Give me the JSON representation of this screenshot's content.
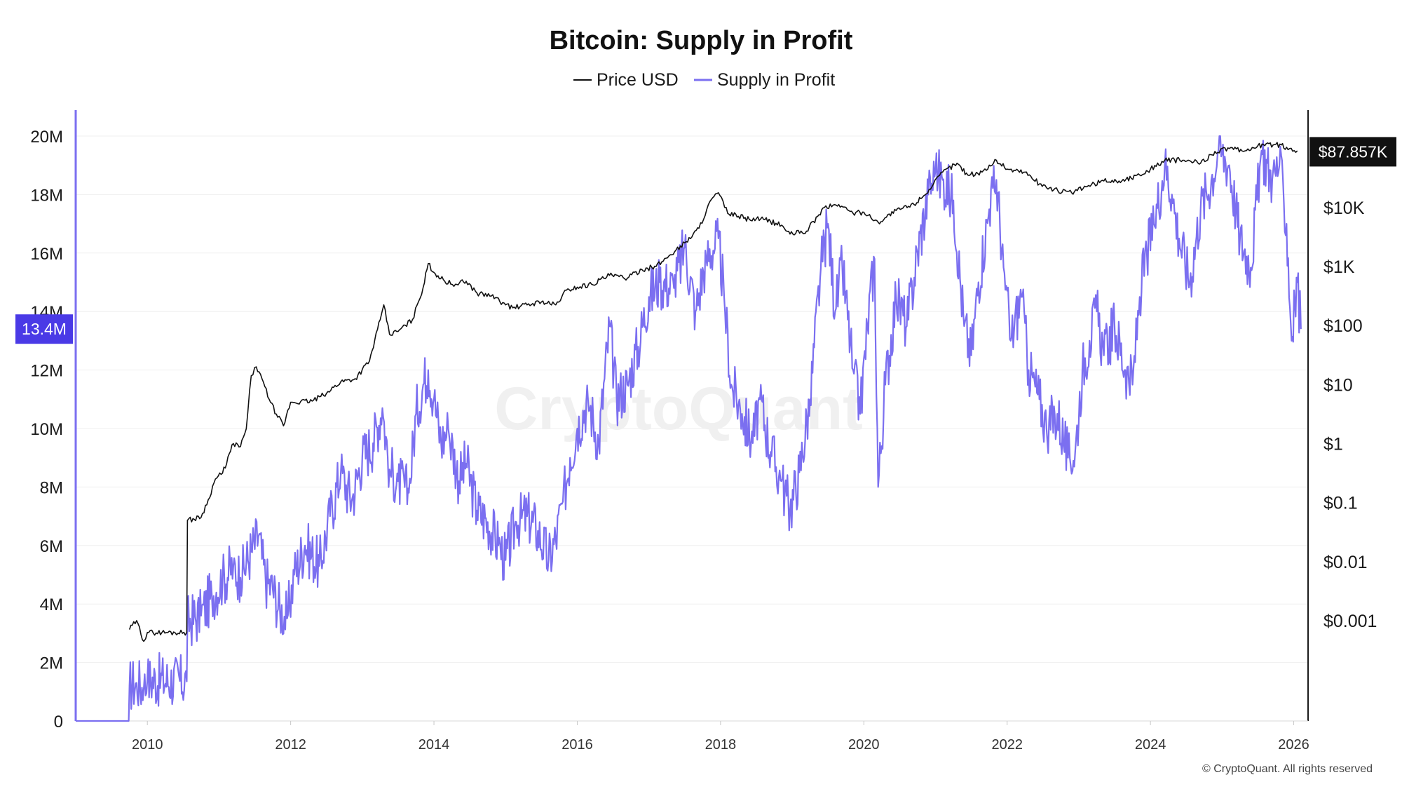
{
  "chart_data": {
    "type": "line",
    "title": "Bitcoin: Supply in Profit",
    "legend": [
      {
        "name": "Price USD",
        "color": "#111111"
      },
      {
        "name": "Supply in Profit",
        "color": "#7b6ff0"
      }
    ],
    "legend_position": "top-center",
    "left_axis": {
      "ylim": [
        0,
        21000000
      ],
      "ticks": [
        0,
        2000000,
        4000000,
        6000000,
        8000000,
        10000000,
        12000000,
        14000000,
        16000000,
        18000000,
        20000000
      ],
      "tick_labels": [
        "0",
        "2M",
        "4M",
        "6M",
        "8M",
        "10M",
        "12M",
        "14M",
        "16M",
        "18M",
        "20M"
      ],
      "color": "#7b6ff0"
    },
    "right_axis": {
      "scale": "log",
      "ylim_log10": [
        -4.7,
        5.65
      ],
      "ticks_log10": [
        -3,
        -2,
        -1,
        0,
        1,
        2,
        3,
        4
      ],
      "tick_labels": [
        "$0.001",
        "$0.01",
        "$0.1",
        "$1",
        "$10",
        "$100",
        "$1K",
        "$10K"
      ],
      "color": "#111111"
    },
    "x_axis": {
      "xlim": [
        2009.0,
        2026.2
      ],
      "ticks": [
        2010,
        2012,
        2014,
        2016,
        2018,
        2020,
        2022,
        2024,
        2026
      ],
      "tick_labels": [
        "2010",
        "2012",
        "2014",
        "2016",
        "2018",
        "2020",
        "2022",
        "2024",
        "2026"
      ]
    },
    "grid": "horizontal",
    "current_supply_label": "13.4M",
    "current_supply_value": 13400000,
    "current_price_label": "$87.857K",
    "current_price_value": 87857,
    "series": [
      {
        "name": "Price USD",
        "axis": "right",
        "unit": "log10 USD",
        "points": [
          [
            2009.75,
            -3.15
          ],
          [
            2009.85,
            -3.0
          ],
          [
            2009.95,
            -3.35
          ],
          [
            2010.0,
            -3.2
          ],
          [
            2010.55,
            -3.2
          ],
          [
            2010.56,
            -1.3
          ],
          [
            2010.75,
            -1.25
          ],
          [
            2010.85,
            -0.95
          ],
          [
            2010.95,
            -0.6
          ],
          [
            2011.05,
            -0.5
          ],
          [
            2011.2,
            0.0
          ],
          [
            2011.3,
            -0.05
          ],
          [
            2011.38,
            0.25
          ],
          [
            2011.45,
            1.15
          ],
          [
            2011.52,
            1.3
          ],
          [
            2011.6,
            1.1
          ],
          [
            2011.7,
            0.75
          ],
          [
            2011.8,
            0.5
          ],
          [
            2011.9,
            0.3
          ],
          [
            2012.0,
            0.7
          ],
          [
            2012.3,
            0.72
          ],
          [
            2012.5,
            0.85
          ],
          [
            2012.7,
            1.05
          ],
          [
            2012.9,
            1.1
          ],
          [
            2013.1,
            1.4
          ],
          [
            2013.25,
            2.1
          ],
          [
            2013.3,
            2.35
          ],
          [
            2013.38,
            1.85
          ],
          [
            2013.5,
            1.9
          ],
          [
            2013.7,
            2.1
          ],
          [
            2013.85,
            2.65
          ],
          [
            2013.92,
            3.05
          ],
          [
            2014.0,
            2.9
          ],
          [
            2014.15,
            2.75
          ],
          [
            2014.3,
            2.7
          ],
          [
            2014.45,
            2.75
          ],
          [
            2014.6,
            2.55
          ],
          [
            2014.8,
            2.5
          ],
          [
            2015.0,
            2.35
          ],
          [
            2015.1,
            2.3
          ],
          [
            2015.3,
            2.35
          ],
          [
            2015.5,
            2.4
          ],
          [
            2015.7,
            2.35
          ],
          [
            2015.85,
            2.6
          ],
          [
            2016.0,
            2.65
          ],
          [
            2016.2,
            2.7
          ],
          [
            2016.45,
            2.85
          ],
          [
            2016.7,
            2.8
          ],
          [
            2016.9,
            2.95
          ],
          [
            2017.1,
            3.0
          ],
          [
            2017.3,
            3.2
          ],
          [
            2017.5,
            3.4
          ],
          [
            2017.7,
            3.65
          ],
          [
            2017.85,
            4.1
          ],
          [
            2017.97,
            4.25
          ],
          [
            2018.1,
            3.9
          ],
          [
            2018.25,
            3.85
          ],
          [
            2018.4,
            3.8
          ],
          [
            2018.6,
            3.8
          ],
          [
            2018.85,
            3.7
          ],
          [
            2018.97,
            3.55
          ],
          [
            2019.2,
            3.6
          ],
          [
            2019.45,
            4.0
          ],
          [
            2019.65,
            4.05
          ],
          [
            2019.85,
            3.9
          ],
          [
            2020.0,
            3.92
          ],
          [
            2020.2,
            3.75
          ],
          [
            2020.45,
            3.95
          ],
          [
            2020.7,
            4.05
          ],
          [
            2020.95,
            4.35
          ],
          [
            2021.1,
            4.6
          ],
          [
            2021.3,
            4.75
          ],
          [
            2021.45,
            4.55
          ],
          [
            2021.65,
            4.6
          ],
          [
            2021.85,
            4.8
          ],
          [
            2022.0,
            4.65
          ],
          [
            2022.25,
            4.6
          ],
          [
            2022.45,
            4.4
          ],
          [
            2022.65,
            4.3
          ],
          [
            2022.9,
            4.25
          ],
          [
            2023.1,
            4.35
          ],
          [
            2023.35,
            4.45
          ],
          [
            2023.6,
            4.45
          ],
          [
            2023.85,
            4.55
          ],
          [
            2024.0,
            4.65
          ],
          [
            2024.2,
            4.8
          ],
          [
            2024.45,
            4.8
          ],
          [
            2024.7,
            4.75
          ],
          [
            2024.9,
            4.95
          ],
          [
            2025.1,
            5.0
          ],
          [
            2025.3,
            4.95
          ],
          [
            2025.5,
            5.05
          ],
          [
            2025.75,
            5.07
          ],
          [
            2025.9,
            5.02
          ],
          [
            2026.05,
            4.96
          ]
        ]
      },
      {
        "name": "Supply in Profit",
        "axis": "left",
        "unit": "BTC",
        "points": [
          [
            2009.0,
            0
          ],
          [
            2009.74,
            0
          ],
          [
            2009.75,
            1200000
          ],
          [
            2009.85,
            1300000
          ],
          [
            2009.95,
            1100000
          ],
          [
            2010.0,
            1400000
          ],
          [
            2010.55,
            1350000
          ],
          [
            2010.56,
            3400000
          ],
          [
            2010.75,
            3600000
          ],
          [
            2010.9,
            4300000
          ],
          [
            2011.05,
            4800000
          ],
          [
            2011.2,
            5300000
          ],
          [
            2011.3,
            4900000
          ],
          [
            2011.45,
            5800000
          ],
          [
            2011.55,
            6300000
          ],
          [
            2011.65,
            4800000
          ],
          [
            2011.75,
            4500000
          ],
          [
            2011.85,
            3800000
          ],
          [
            2011.95,
            3500000
          ],
          [
            2012.05,
            5000000
          ],
          [
            2012.2,
            6000000
          ],
          [
            2012.4,
            5300000
          ],
          [
            2012.55,
            7000000
          ],
          [
            2012.7,
            8500000
          ],
          [
            2012.85,
            7500000
          ],
          [
            2013.0,
            9000000
          ],
          [
            2013.15,
            9500000
          ],
          [
            2013.28,
            10700000
          ],
          [
            2013.38,
            8600000
          ],
          [
            2013.5,
            8200000
          ],
          [
            2013.65,
            7800000
          ],
          [
            2013.75,
            10500000
          ],
          [
            2013.85,
            11500000
          ],
          [
            2013.92,
            12000000
          ],
          [
            2014.0,
            11000000
          ],
          [
            2014.1,
            9500000
          ],
          [
            2014.2,
            10000000
          ],
          [
            2014.35,
            8200000
          ],
          [
            2014.45,
            8800000
          ],
          [
            2014.6,
            7200000
          ],
          [
            2014.75,
            6800000
          ],
          [
            2014.9,
            6000000
          ],
          [
            2015.0,
            5500000
          ],
          [
            2015.15,
            6800000
          ],
          [
            2015.3,
            7000000
          ],
          [
            2015.45,
            6500000
          ],
          [
            2015.6,
            5500000
          ],
          [
            2015.7,
            6200000
          ],
          [
            2015.8,
            7500000
          ],
          [
            2015.9,
            9000000
          ],
          [
            2016.0,
            10000000
          ],
          [
            2016.15,
            11000000
          ],
          [
            2016.3,
            9500000
          ],
          [
            2016.45,
            13500000
          ],
          [
            2016.55,
            11000000
          ],
          [
            2016.7,
            11500000
          ],
          [
            2016.85,
            12800000
          ],
          [
            2017.0,
            14500000
          ],
          [
            2017.15,
            15000000
          ],
          [
            2017.35,
            14800000
          ],
          [
            2017.5,
            16200000
          ],
          [
            2017.65,
            14000000
          ],
          [
            2017.8,
            15800000
          ],
          [
            2017.97,
            16500000
          ],
          [
            2018.05,
            14500000
          ],
          [
            2018.15,
            11500000
          ],
          [
            2018.3,
            10500000
          ],
          [
            2018.45,
            9500000
          ],
          [
            2018.55,
            11000000
          ],
          [
            2018.7,
            9200000
          ],
          [
            2018.85,
            8200000
          ],
          [
            2018.97,
            7200000
          ],
          [
            2019.1,
            8500000
          ],
          [
            2019.25,
            11000000
          ],
          [
            2019.4,
            15500000
          ],
          [
            2019.5,
            17000000
          ],
          [
            2019.6,
            14000000
          ],
          [
            2019.7,
            15500000
          ],
          [
            2019.85,
            12000000
          ],
          [
            2019.95,
            10500000
          ],
          [
            2020.05,
            13500000
          ],
          [
            2020.15,
            15800000
          ],
          [
            2020.2,
            8000000
          ],
          [
            2020.3,
            11500000
          ],
          [
            2020.45,
            14500000
          ],
          [
            2020.6,
            13500000
          ],
          [
            2020.75,
            16000000
          ],
          [
            2020.9,
            18000000
          ],
          [
            2021.0,
            18800000
          ],
          [
            2021.1,
            18500000
          ],
          [
            2021.25,
            17800000
          ],
          [
            2021.4,
            13500000
          ],
          [
            2021.5,
            12500000
          ],
          [
            2021.6,
            15000000
          ],
          [
            2021.75,
            17500000
          ],
          [
            2021.85,
            18500000
          ],
          [
            2021.95,
            15500000
          ],
          [
            2022.05,
            13000000
          ],
          [
            2022.2,
            14500000
          ],
          [
            2022.3,
            12000000
          ],
          [
            2022.45,
            11000000
          ],
          [
            2022.55,
            10000000
          ],
          [
            2022.7,
            10500000
          ],
          [
            2022.85,
            9000000
          ],
          [
            2022.95,
            9200000
          ],
          [
            2023.05,
            12000000
          ],
          [
            2023.15,
            13000000
          ],
          [
            2023.25,
            14000000
          ],
          [
            2023.35,
            12500000
          ],
          [
            2023.5,
            13500000
          ],
          [
            2023.65,
            12000000
          ],
          [
            2023.75,
            11500000
          ],
          [
            2023.85,
            14500000
          ],
          [
            2023.95,
            16000000
          ],
          [
            2024.05,
            17000000
          ],
          [
            2024.2,
            19000000
          ],
          [
            2024.3,
            18000000
          ],
          [
            2024.4,
            16500000
          ],
          [
            2024.55,
            15000000
          ],
          [
            2024.7,
            17500000
          ],
          [
            2024.85,
            18500000
          ],
          [
            2024.95,
            19500000
          ],
          [
            2025.1,
            19000000
          ],
          [
            2025.25,
            16500000
          ],
          [
            2025.4,
            15500000
          ],
          [
            2025.55,
            19500000
          ],
          [
            2025.7,
            18500000
          ],
          [
            2025.8,
            19000000
          ],
          [
            2025.9,
            17000000
          ],
          [
            2025.97,
            13000000
          ],
          [
            2026.05,
            15000000
          ],
          [
            2026.1,
            13400000
          ]
        ]
      }
    ]
  },
  "watermark": "CryptoQuant",
  "footer": "© CryptoQuant. All rights reserved"
}
